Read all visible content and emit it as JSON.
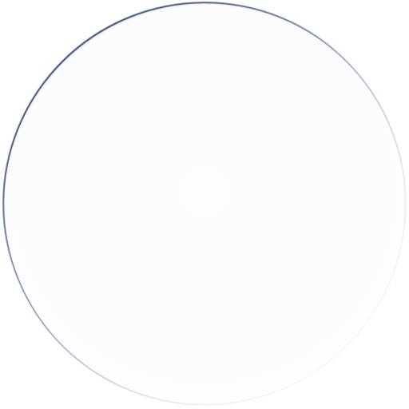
{
  "scene": {
    "subject": "lens",
    "colors": {
      "background": "#ffffff",
      "rim": "#344878",
      "center": "#fcfcfb"
    }
  }
}
